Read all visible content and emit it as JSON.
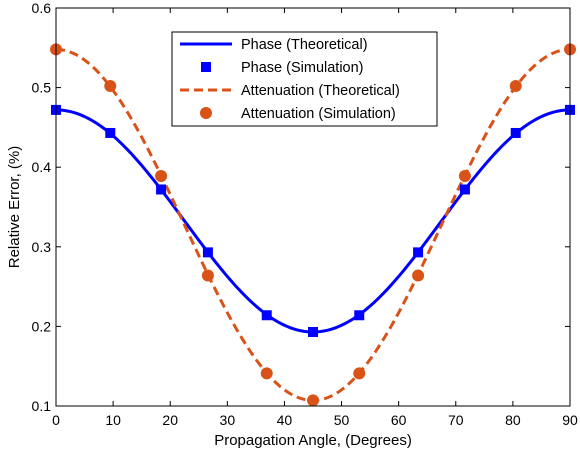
{
  "chart_data": {
    "type": "line",
    "xlabel": "Propagation Angle, (Degrees)",
    "ylabel": "Relative Error, (%)",
    "xlim": [
      0,
      90
    ],
    "ylim": [
      0.1,
      0.6
    ],
    "xticks": [
      0,
      10,
      20,
      30,
      40,
      50,
      60,
      70,
      80,
      90
    ],
    "yticks": [
      0.1,
      0.2,
      0.3,
      0.4,
      0.5,
      0.6
    ],
    "xtick_labels": [
      "0",
      "10",
      "20",
      "30",
      "40",
      "50",
      "60",
      "70",
      "80",
      "90"
    ],
    "ytick_labels": [
      "0.1",
      "0.2",
      "0.3",
      "0.4",
      "0.5",
      "0.6"
    ],
    "grid": false,
    "legend_position": "top-center",
    "series": [
      {
        "name": "Phase (Theoretical)",
        "style": "solid-line",
        "color": "#0000ff",
        "curve": {
          "center": 0.3325,
          "amplitude": 0.1395,
          "period_deg": 90,
          "peak_at_deg": 0
        }
      },
      {
        "name": "Phase (Simulation)",
        "style": "square-markers",
        "color": "#0000ff",
        "x": [
          0,
          9.5,
          18.4,
          26.6,
          36.9,
          45,
          53.1,
          63.4,
          71.6,
          80.5,
          90
        ],
        "y": [
          0.472,
          0.443,
          0.372,
          0.293,
          0.214,
          0.193,
          0.214,
          0.293,
          0.372,
          0.443,
          0.472
        ]
      },
      {
        "name": "Attenuation (Theoretical)",
        "style": "dashed-line",
        "color": "#d95319",
        "curve": {
          "center": 0.3275,
          "amplitude": 0.2205,
          "period_deg": 90,
          "peak_at_deg": 0
        }
      },
      {
        "name": "Attenuation (Simulation)",
        "style": "circle-markers",
        "color": "#d95319",
        "x": [
          0,
          9.5,
          18.4,
          26.6,
          36.9,
          45,
          53.1,
          63.4,
          71.6,
          80.5,
          90
        ],
        "y": [
          0.548,
          0.502,
          0.389,
          0.264,
          0.141,
          0.107,
          0.141,
          0.264,
          0.389,
          0.502,
          0.548
        ]
      }
    ]
  }
}
